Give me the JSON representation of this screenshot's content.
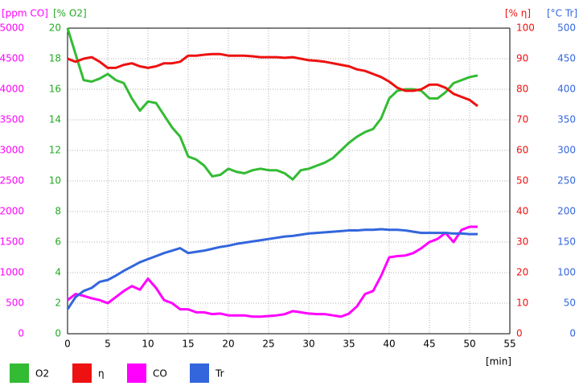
{
  "chart_data": {
    "type": "line",
    "xlabel": "[min]",
    "xlim": [
      0,
      55
    ],
    "xticks": [
      0,
      5,
      10,
      15,
      20,
      25,
      30,
      35,
      40,
      45,
      50,
      55
    ],
    "grid": true,
    "axes": [
      {
        "label": "[ppm CO]",
        "color": "#ff00ff",
        "ylim": [
          0,
          5000
        ],
        "yticks": [
          0,
          500,
          1000,
          1500,
          2000,
          2500,
          3000,
          3500,
          4000,
          4500,
          5000
        ]
      },
      {
        "label": "[% O2]",
        "color": "#22aa22",
        "ylim": [
          0,
          20
        ],
        "yticks": [
          0,
          2,
          4,
          6,
          8,
          10,
          12,
          14,
          16,
          18,
          20
        ]
      },
      {
        "label": "[% η]",
        "color": "#ee1111",
        "ylim": [
          0,
          100
        ],
        "yticks": [
          0,
          10,
          20,
          30,
          40,
          50,
          60,
          70,
          80,
          90,
          100
        ]
      },
      {
        "label": "[°C Tr]",
        "color": "#3366dd",
        "ylim": [
          0,
          500
        ],
        "yticks": [
          0,
          50,
          100,
          150,
          200,
          250,
          300,
          350,
          400,
          450,
          500
        ]
      }
    ],
    "x": [
      0,
      1,
      2,
      3,
      4,
      5,
      6,
      7,
      8,
      9,
      10,
      11,
      12,
      13,
      14,
      15,
      16,
      17,
      18,
      19,
      20,
      21,
      22,
      23,
      24,
      25,
      26,
      27,
      28,
      29,
      30,
      31,
      32,
      33,
      34,
      35,
      36,
      37,
      38,
      39,
      40,
      41,
      42,
      43,
      44,
      45,
      46,
      47,
      48,
      49,
      50,
      51
    ],
    "series": [
      {
        "name": "O2",
        "color": "#33bb33",
        "axis": 1,
        "values": [
          20,
          18.3,
          16.6,
          16.5,
          16.7,
          17.0,
          16.6,
          16.4,
          15.4,
          14.6,
          15.2,
          15.1,
          14.3,
          13.5,
          12.9,
          11.6,
          11.4,
          11.0,
          10.3,
          10.4,
          10.8,
          10.6,
          10.5,
          10.7,
          10.8,
          10.7,
          10.7,
          10.5,
          10.1,
          10.7,
          10.8,
          11.0,
          11.2,
          11.5,
          12.0,
          12.5,
          12.9,
          13.2,
          13.4,
          14.1,
          15.4,
          15.9,
          16.0,
          16.0,
          15.9,
          15.4,
          15.4,
          15.8,
          16.4,
          16.6,
          16.8,
          16.9
        ]
      },
      {
        "name": "η",
        "color": "#ee1111",
        "axis": 2,
        "values": [
          90,
          89,
          90,
          90.5,
          89,
          87,
          87,
          88,
          88.5,
          87.5,
          87,
          87.5,
          88.5,
          88.5,
          89,
          91,
          91,
          91.3,
          91.5,
          91.5,
          91,
          91,
          91,
          90.8,
          90.5,
          90.5,
          90.5,
          90.3,
          90.5,
          90,
          89.5,
          89.3,
          89,
          88.5,
          88,
          87.5,
          86.5,
          86,
          85,
          84,
          82.5,
          80.5,
          79.5,
          79.5,
          80,
          81.5,
          81.5,
          80.5,
          78.5,
          77.5,
          76.5,
          74.5
        ]
      },
      {
        "name": "CO",
        "color": "#ff00ff",
        "axis": 0,
        "values": [
          550,
          650,
          620,
          580,
          550,
          500,
          600,
          700,
          780,
          720,
          900,
          750,
          550,
          500,
          400,
          400,
          350,
          350,
          320,
          330,
          300,
          300,
          300,
          280,
          280,
          290,
          300,
          320,
          370,
          350,
          330,
          320,
          320,
          300,
          280,
          330,
          450,
          650,
          700,
          950,
          1250,
          1270,
          1280,
          1320,
          1400,
          1500,
          1550,
          1650,
          1500,
          1700,
          1750,
          1750
        ]
      },
      {
        "name": "Tr",
        "color": "#3366dd",
        "axis": 3,
        "values": [
          40,
          60,
          70,
          75,
          85,
          88,
          95,
          103,
          110,
          117,
          122,
          127,
          132,
          136,
          140,
          132,
          134,
          136,
          139,
          142,
          144,
          147,
          149,
          151,
          153,
          155,
          157,
          159,
          160,
          162,
          164,
          165,
          166,
          167,
          168,
          169,
          169,
          170,
          170,
          171,
          170,
          170,
          169,
          167,
          165,
          165,
          165,
          165,
          164,
          164,
          163,
          163
        ]
      }
    ]
  }
}
